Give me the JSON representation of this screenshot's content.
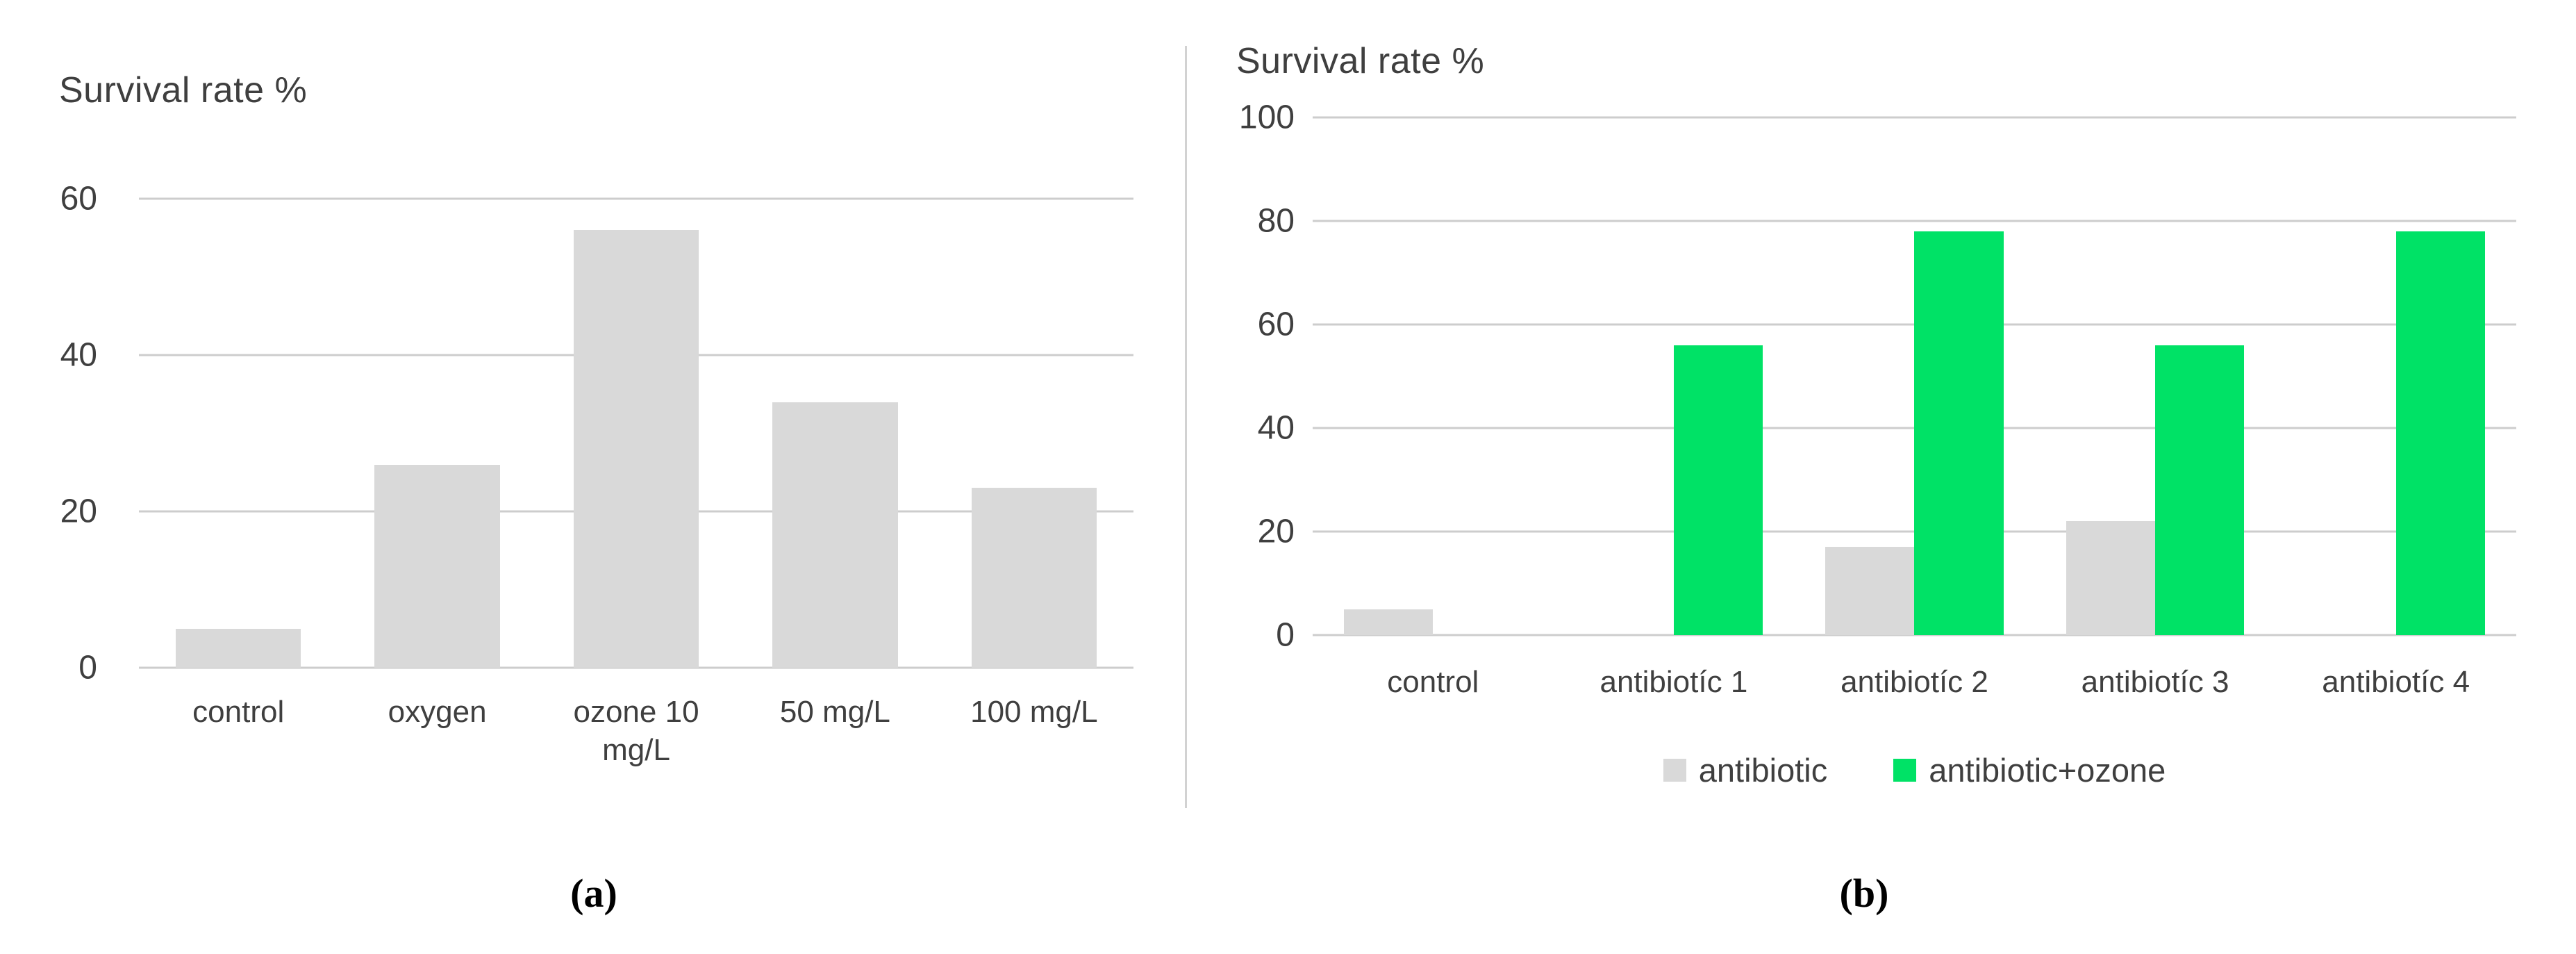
{
  "figure": {
    "caption_a": "(a)",
    "caption_b": "(b)"
  },
  "colors": {
    "bar_gray": "#d9d9d9",
    "bar_green": "#00e266",
    "gridline": "#cdcdcd",
    "text": "#3f3f3f"
  },
  "chart_data": [
    {
      "type": "bar",
      "title": "Survival rate %",
      "categories": [
        "control",
        "oxygen",
        "ozone 10 mg/L",
        "50 mg/L",
        "100 mg/L"
      ],
      "values": [
        5,
        26,
        56,
        34,
        23
      ],
      "xlabel": "",
      "ylabel": "Survival rate %",
      "ylim": [
        0,
        60
      ],
      "yticks": [
        0,
        20,
        40,
        60
      ],
      "grid": true,
      "legend": "none"
    },
    {
      "type": "bar",
      "title": "Survival rate %",
      "categories": [
        "control",
        "antibiotíc 1",
        "antibiotíc 2",
        "antibiotíc 3",
        "antibiotíc 4"
      ],
      "series": [
        {
          "name": "antibiotic",
          "color_key": "bar_gray",
          "values": [
            5,
            0,
            17,
            22,
            0
          ]
        },
        {
          "name": "antibiotic+ozone",
          "color_key": "bar_green",
          "values": [
            0,
            56,
            78,
            56,
            78
          ]
        }
      ],
      "xlabel": "",
      "ylabel": "Survival rate %",
      "ylim": [
        0,
        100
      ],
      "yticks": [
        0,
        20,
        40,
        60,
        80,
        100
      ],
      "grid": true,
      "legend_position": "bottom"
    }
  ]
}
